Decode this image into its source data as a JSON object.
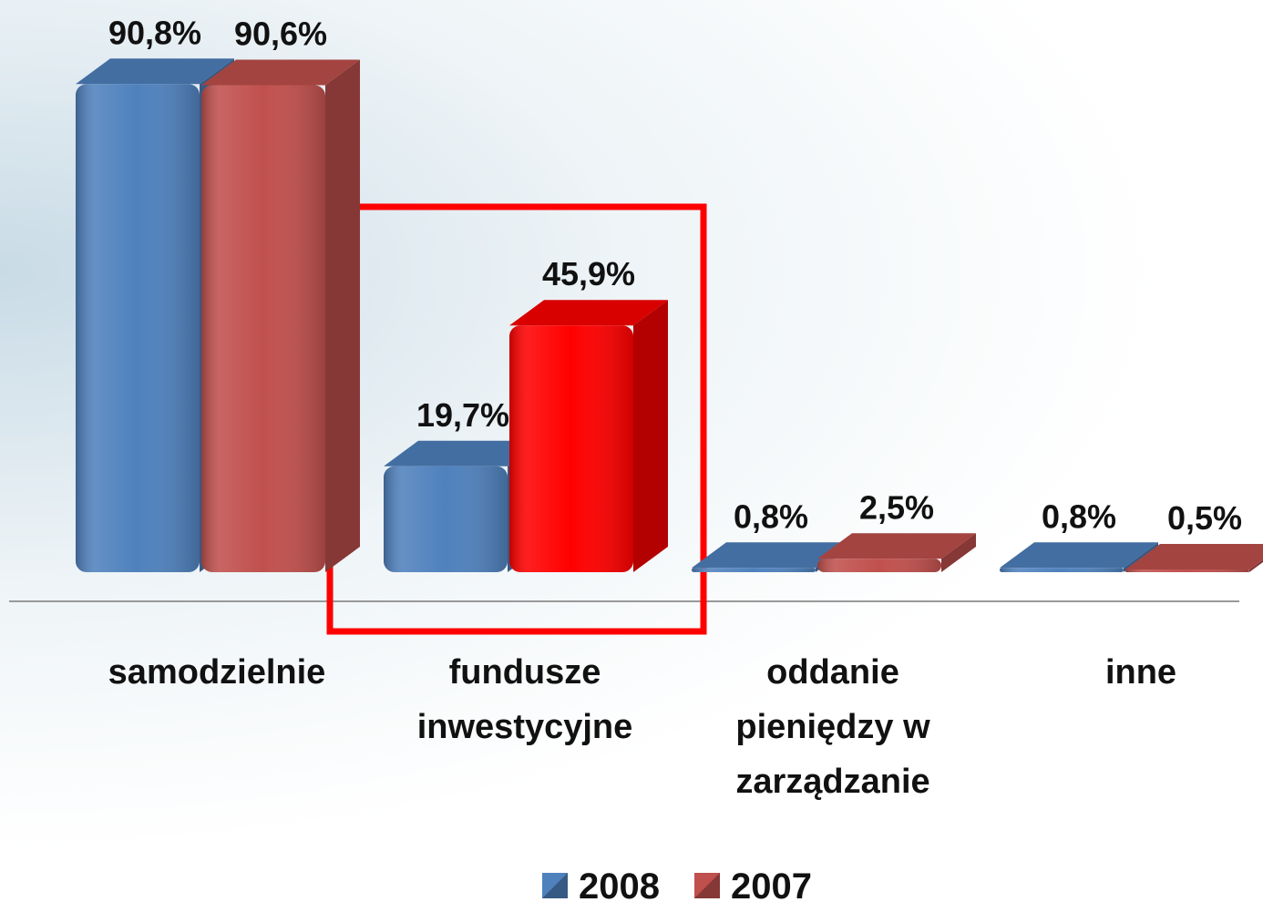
{
  "chart_data": {
    "type": "bar3d",
    "categories": [
      "samodzielnie",
      "fundusze inwestycyjne",
      "oddanie pieniędzy w zarządzanie",
      "inne"
    ],
    "series": [
      {
        "name": "2008",
        "color": "#4f81bd",
        "values": [
          90.8,
          19.7,
          0.8,
          0.8
        ],
        "value_labels": [
          "90,8%",
          "19,7%",
          "0,8%",
          "0,8%"
        ]
      },
      {
        "name": "2007",
        "color": "#c0504d",
        "values": [
          90.6,
          45.9,
          2.5,
          0.5
        ],
        "value_labels": [
          "90,6%",
          "45,9%",
          "2,5%",
          "0,5%"
        ]
      }
    ],
    "highlight": {
      "category": 1,
      "series": 1,
      "color": "#ff0000"
    },
    "ylim": [
      0,
      100
    ],
    "legend": "bottom"
  }
}
